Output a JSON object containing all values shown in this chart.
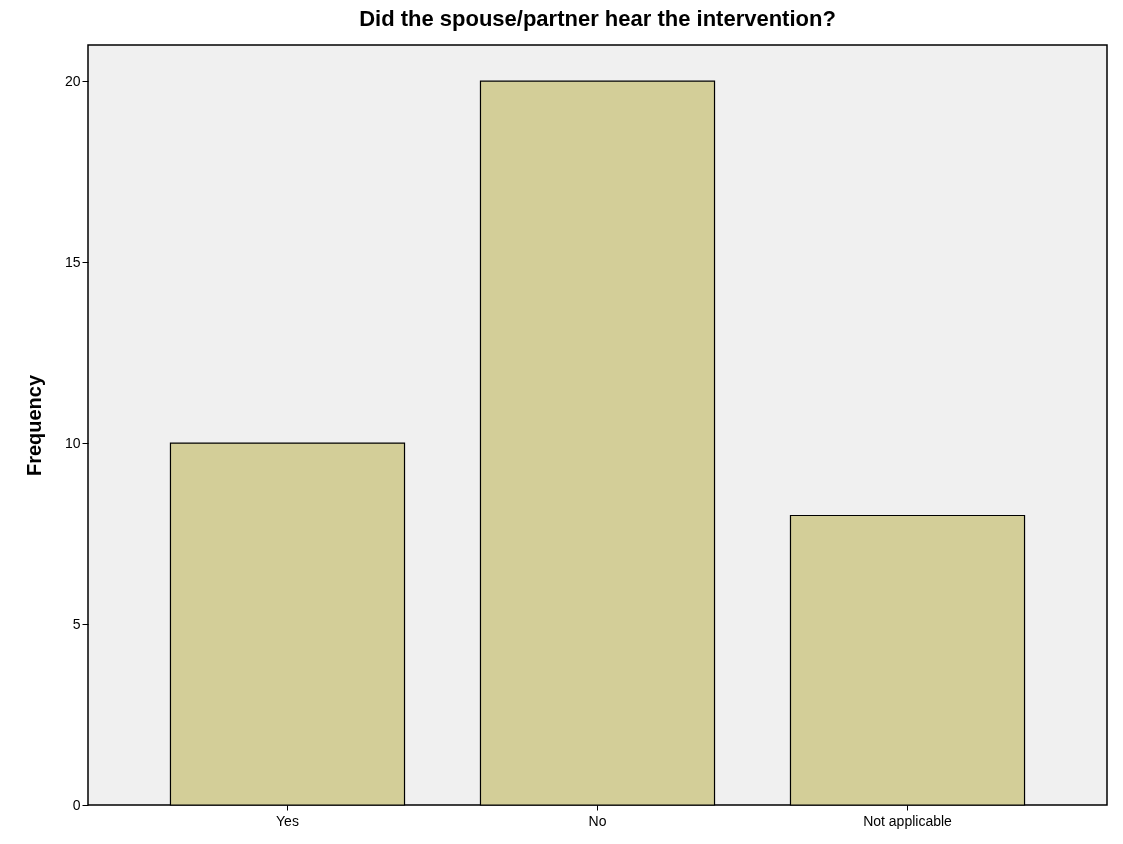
{
  "chart_data": {
    "type": "bar",
    "title": "Did the spouse/partner hear the intervention?",
    "ylabel": "Frequency",
    "categories": [
      "Yes",
      "No",
      "Not applicable"
    ],
    "values": [
      10,
      20,
      8
    ],
    "color": "#d3ce98",
    "ylim": [
      0,
      21
    ],
    "yticks": [
      0,
      5,
      10,
      15,
      20
    ],
    "grid": false
  }
}
